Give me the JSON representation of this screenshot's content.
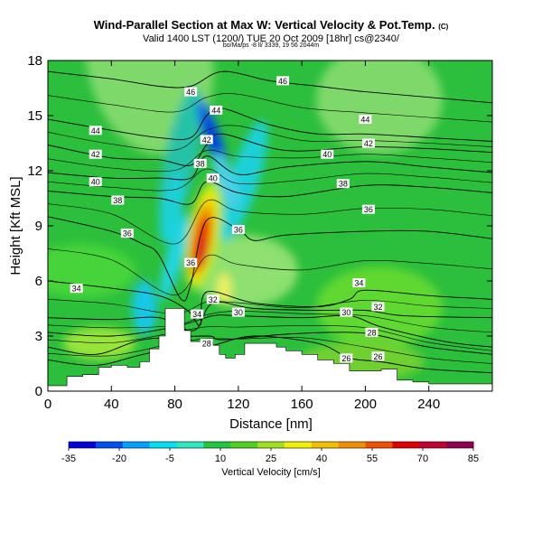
{
  "chart_data": {
    "type": "heatmap",
    "title": "Wind-Parallel Section at Max W: Vertical Velocity & Pot.Temp.",
    "title_mark": "(C)",
    "subtitle": "Valid 1400 LST (1200/) TUE 20 Oct 2009 [18hr] cs@2340/",
    "note": "bo/Ma/ps -8 ll/ 3339, 19 56 2044m",
    "xlabel": "Distance [nm]",
    "ylabel": "Height [Kft MSL]",
    "xlim": [
      0,
      280
    ],
    "ylim": [
      0,
      18
    ],
    "xticks": [
      0,
      40,
      80,
      120,
      160,
      200,
      240
    ],
    "yticks": [
      0,
      3,
      6,
      9,
      12,
      15,
      18
    ],
    "colorbar": {
      "label": "Vertical Velocity [cm/s]",
      "ticks": [
        -35,
        -20,
        -5,
        10,
        25,
        40,
        55,
        70,
        85
      ],
      "colors": [
        "#0000d8",
        "#0050f0",
        "#00a0ff",
        "#00e0f0",
        "#30e8c0",
        "#20c840",
        "#50d020",
        "#a0e020",
        "#f0f000",
        "#f0c000",
        "#f09000",
        "#f05000",
        "#e00000",
        "#c00030",
        "#900050"
      ]
    },
    "terrain_kft": [
      [
        0,
        0.3
      ],
      [
        12,
        0.8
      ],
      [
        22,
        0.9
      ],
      [
        32,
        1.3
      ],
      [
        40,
        1.4
      ],
      [
        50,
        1.3
      ],
      [
        58,
        1.6
      ],
      [
        64,
        2.3
      ],
      [
        70,
        3.0
      ],
      [
        74,
        4.5
      ],
      [
        84,
        4.5
      ],
      [
        86,
        3.3
      ],
      [
        90,
        2.7
      ],
      [
        100,
        2.7
      ],
      [
        104,
        2.5
      ],
      [
        108,
        2.0
      ],
      [
        112,
        1.8
      ],
      [
        118,
        2.0
      ],
      [
        124,
        2.6
      ],
      [
        134,
        2.6
      ],
      [
        144,
        2.4
      ],
      [
        150,
        2.2
      ],
      [
        160,
        2.0
      ],
      [
        170,
        1.7
      ],
      [
        180,
        1.5
      ],
      [
        190,
        1.1
      ],
      [
        202,
        1.1
      ],
      [
        210,
        1.2
      ],
      [
        220,
        0.6
      ],
      [
        230,
        0.5
      ],
      [
        240,
        0.4
      ],
      [
        256,
        0.4
      ],
      [
        268,
        0.4
      ],
      [
        280,
        0.4
      ]
    ],
    "vertical_velocity_features": [
      {
        "feature": "updraft",
        "center_x": 95,
        "center_kft": 7.5,
        "max_cm_s": 80
      },
      {
        "feature": "downdraft",
        "center_x": 104,
        "center_kft": 13.5,
        "min_cm_s": -30
      },
      {
        "feature": "background",
        "value_cm_s": 10
      }
    ],
    "theta_contours": [
      {
        "value": 46,
        "pts": [
          [
            0,
            17.4
          ],
          [
            40,
            17.0
          ],
          [
            70,
            16.6
          ],
          [
            90,
            16.6
          ],
          [
            110,
            17.4
          ],
          [
            140,
            16.9
          ],
          [
            170,
            16.6
          ],
          [
            200,
            16.3
          ],
          [
            240,
            16.0
          ],
          [
            280,
            15.7
          ]
        ]
      },
      {
        "value": 44,
        "pts": [
          [
            0,
            14.8
          ],
          [
            40,
            14.2
          ],
          [
            70,
            13.8
          ],
          [
            90,
            13.8
          ],
          [
            100,
            15.0
          ],
          [
            110,
            15.4
          ],
          [
            140,
            14.5
          ],
          [
            170,
            14.0
          ],
          [
            200,
            14.0
          ],
          [
            240,
            13.8
          ],
          [
            280,
            13.6
          ]
        ]
      },
      {
        "value": 42,
        "pts": [
          [
            0,
            13.4
          ],
          [
            40,
            12.7
          ],
          [
            70,
            12.6
          ],
          [
            90,
            12.3
          ],
          [
            100,
            13.4
          ],
          [
            110,
            14.0
          ],
          [
            150,
            13.1
          ],
          [
            200,
            13.3
          ],
          [
            240,
            13.2
          ],
          [
            280,
            13.0
          ]
        ]
      },
      {
        "value": 40,
        "pts": [
          [
            0,
            11.9
          ],
          [
            40,
            11.6
          ],
          [
            70,
            11.6
          ],
          [
            90,
            11.6
          ],
          [
            100,
            12.8
          ],
          [
            120,
            11.8
          ],
          [
            150,
            12.2
          ],
          [
            200,
            12.5
          ],
          [
            240,
            12.2
          ],
          [
            280,
            11.9
          ]
        ]
      },
      {
        "value": 38,
        "pts": [
          [
            0,
            10.9
          ],
          [
            40,
            10.6
          ],
          [
            70,
            10.5
          ],
          [
            90,
            10.2
          ],
          [
            100,
            11.4
          ],
          [
            120,
            10.8
          ],
          [
            150,
            10.6
          ],
          [
            200,
            11.2
          ],
          [
            240,
            11.1
          ],
          [
            280,
            10.8
          ]
        ]
      },
      {
        "value": 36,
        "pts": [
          [
            0,
            9.5
          ],
          [
            40,
            8.7
          ],
          [
            60,
            8.0
          ],
          [
            70,
            7.4
          ],
          [
            84,
            5.0
          ],
          [
            90,
            5.8
          ],
          [
            100,
            9.3
          ],
          [
            120,
            8.8
          ],
          [
            130,
            8.2
          ],
          [
            150,
            8.5
          ],
          [
            200,
            8.7
          ],
          [
            240,
            8.7
          ],
          [
            280,
            8.3
          ]
        ]
      },
      {
        "value": 34,
        "pts": [
          [
            0,
            6.0
          ],
          [
            40,
            5.6
          ],
          [
            70,
            5.2
          ],
          [
            88,
            4.4
          ],
          [
            96,
            3.6
          ],
          [
            100,
            5.4
          ],
          [
            130,
            4.8
          ],
          [
            170,
            4.6
          ],
          [
            190,
            5.0
          ],
          [
            200,
            5.5
          ],
          [
            240,
            5.2
          ],
          [
            280,
            5.0
          ]
        ]
      },
      {
        "value": 32,
        "pts": [
          [
            0,
            4.0
          ],
          [
            40,
            3.9
          ],
          [
            70,
            4.0
          ],
          [
            92,
            3.3
          ],
          [
            104,
            4.8
          ],
          [
            130,
            4.5
          ],
          [
            170,
            4.4
          ],
          [
            200,
            4.4
          ],
          [
            225,
            4.1
          ],
          [
            280,
            4.0
          ]
        ]
      },
      {
        "value": 30,
        "pts": [
          [
            0,
            3.2
          ],
          [
            40,
            3.0
          ],
          [
            80,
            3.5
          ],
          [
            104,
            4.1
          ],
          [
            120,
            4.1
          ],
          [
            160,
            4.0
          ],
          [
            190,
            4.1
          ],
          [
            210,
            3.5
          ],
          [
            250,
            2.7
          ],
          [
            280,
            2.4
          ]
        ]
      },
      {
        "value": 28,
        "pts": [
          [
            0,
            2.4
          ],
          [
            30,
            2.0
          ],
          [
            60,
            2.8
          ],
          [
            100,
            3.0
          ],
          [
            110,
            2.8
          ],
          [
            150,
            3.1
          ],
          [
            190,
            3.2
          ],
          [
            210,
            3.0
          ],
          [
            240,
            2.4
          ],
          [
            280,
            2.0
          ]
        ]
      },
      {
        "value": 26,
        "pts": [
          [
            0,
            1.7
          ],
          [
            30,
            1.4
          ],
          [
            60,
            2.0
          ],
          [
            100,
            2.7
          ],
          [
            104,
            2.5
          ],
          [
            130,
            3.0
          ],
          [
            170,
            2.6
          ],
          [
            190,
            1.8
          ],
          [
            210,
            1.6
          ],
          [
            240,
            1.2
          ],
          [
            280,
            1.0
          ]
        ]
      }
    ],
    "contour_labels": [
      {
        "text": "46",
        "x": 90,
        "kft": 16.3
      },
      {
        "text": "46",
        "x": 148,
        "kft": 16.9
      },
      {
        "text": "44",
        "x": 30,
        "kft": 14.2
      },
      {
        "text": "44",
        "x": 106,
        "kft": 15.3
      },
      {
        "text": "44",
        "x": 200,
        "kft": 14.8
      },
      {
        "text": "42",
        "x": 30,
        "kft": 12.9
      },
      {
        "text": "42",
        "x": 100,
        "kft": 13.7
      },
      {
        "text": "42",
        "x": 202,
        "kft": 13.5
      },
      {
        "text": "40",
        "x": 30,
        "kft": 11.4
      },
      {
        "text": "40",
        "x": 104,
        "kft": 11.6
      },
      {
        "text": "40",
        "x": 176,
        "kft": 12.9
      },
      {
        "text": "38",
        "x": 96,
        "kft": 12.4
      },
      {
        "text": "38",
        "x": 44,
        "kft": 10.4
      },
      {
        "text": "38",
        "x": 186,
        "kft": 11.3
      },
      {
        "text": "36",
        "x": 50,
        "kft": 8.6
      },
      {
        "text": "36",
        "x": 90,
        "kft": 7.0
      },
      {
        "text": "36",
        "x": 120,
        "kft": 8.8
      },
      {
        "text": "36",
        "x": 202,
        "kft": 9.9
      },
      {
        "text": "34",
        "x": 18,
        "kft": 5.6
      },
      {
        "text": "34",
        "x": 94,
        "kft": 4.2
      },
      {
        "text": "34",
        "x": 196,
        "kft": 5.9
      },
      {
        "text": "32",
        "x": 104,
        "kft": 5.0
      },
      {
        "text": "32",
        "x": 208,
        "kft": 4.6
      },
      {
        "text": "30",
        "x": 120,
        "kft": 4.3
      },
      {
        "text": "30",
        "x": 188,
        "kft": 4.3
      },
      {
        "text": "28",
        "x": 100,
        "kft": 2.6
      },
      {
        "text": "28",
        "x": 204,
        "kft": 3.2
      },
      {
        "text": "26",
        "x": 188,
        "kft": 1.8
      },
      {
        "text": "26",
        "x": 208,
        "kft": 1.9
      }
    ]
  }
}
